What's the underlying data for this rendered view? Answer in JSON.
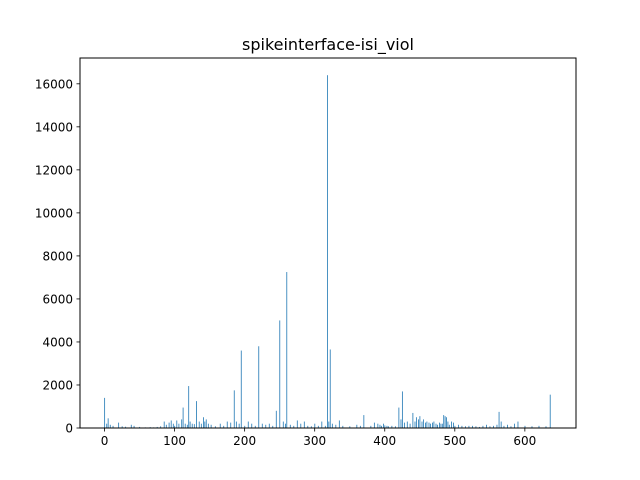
{
  "chart_data": {
    "type": "bar",
    "title": "spikeinterface-isi_viol",
    "xlabel": "",
    "ylabel": "",
    "xlim": [
      -35,
      673
    ],
    "ylim": [
      0,
      17200
    ],
    "xticks": [
      0,
      100,
      200,
      300,
      400,
      500,
      600
    ],
    "yticks": [
      0,
      2000,
      4000,
      6000,
      8000,
      10000,
      12000,
      14000,
      16000
    ],
    "grid": false,
    "color": "#1f77b4",
    "x": [
      0,
      3,
      5,
      8,
      12,
      20,
      25,
      30,
      38,
      42,
      50,
      58,
      65,
      70,
      75,
      80,
      85,
      88,
      92,
      95,
      98,
      100,
      103,
      106,
      110,
      112,
      115,
      118,
      120,
      122,
      125,
      128,
      131,
      135,
      138,
      141,
      143,
      145,
      148,
      152,
      158,
      165,
      170,
      175,
      180,
      185,
      188,
      192,
      195,
      200,
      205,
      210,
      215,
      220,
      225,
      230,
      235,
      240,
      245,
      250,
      255,
      258,
      260,
      265,
      270,
      275,
      280,
      285,
      290,
      295,
      300,
      305,
      310,
      315,
      318,
      320,
      322,
      325,
      330,
      335,
      340,
      350,
      360,
      365,
      370,
      380,
      385,
      390,
      393,
      395,
      398,
      400,
      403,
      405,
      410,
      415,
      420,
      423,
      425,
      428,
      432,
      436,
      440,
      443,
      445,
      448,
      450,
      453,
      455,
      458,
      460,
      463,
      465,
      468,
      470,
      473,
      475,
      478,
      480,
      482,
      484,
      486,
      488,
      490,
      492,
      495,
      498,
      500,
      505,
      510,
      515,
      520,
      525,
      530,
      535,
      540,
      545,
      550,
      555,
      560,
      563,
      566,
      570,
      575,
      580,
      585,
      590,
      600,
      610,
      620,
      630,
      636
    ],
    "values": [
      1400,
      200,
      450,
      150,
      100,
      250,
      80,
      60,
      150,
      100,
      50,
      30,
      40,
      30,
      50,
      80,
      300,
      150,
      250,
      350,
      200,
      100,
      350,
      200,
      400,
      950,
      200,
      150,
      1950,
      300,
      200,
      180,
      1250,
      300,
      200,
      500,
      300,
      400,
      200,
      150,
      80,
      200,
      100,
      300,
      250,
      1750,
      300,
      200,
      3600,
      100,
      300,
      200,
      100,
      3800,
      200,
      150,
      200,
      100,
      800,
      5000,
      300,
      200,
      7250,
      150,
      100,
      350,
      200,
      300,
      100,
      80,
      200,
      100,
      300,
      100,
      16400,
      300,
      3650,
      200,
      150,
      350,
      100,
      80,
      150,
      100,
      600,
      100,
      250,
      200,
      150,
      100,
      200,
      120,
      100,
      80,
      100,
      80,
      950,
      400,
      1700,
      250,
      300,
      200,
      700,
      300,
      500,
      400,
      550,
      300,
      400,
      250,
      300,
      250,
      200,
      250,
      300,
      200,
      150,
      250,
      200,
      200,
      600,
      550,
      500,
      300,
      150,
      300,
      250,
      100,
      150,
      100,
      80,
      100,
      100,
      80,
      50,
      100,
      150,
      80,
      100,
      150,
      750,
      300,
      100,
      150,
      80,
      200,
      300,
      100,
      80,
      100,
      80,
      1550
    ]
  }
}
